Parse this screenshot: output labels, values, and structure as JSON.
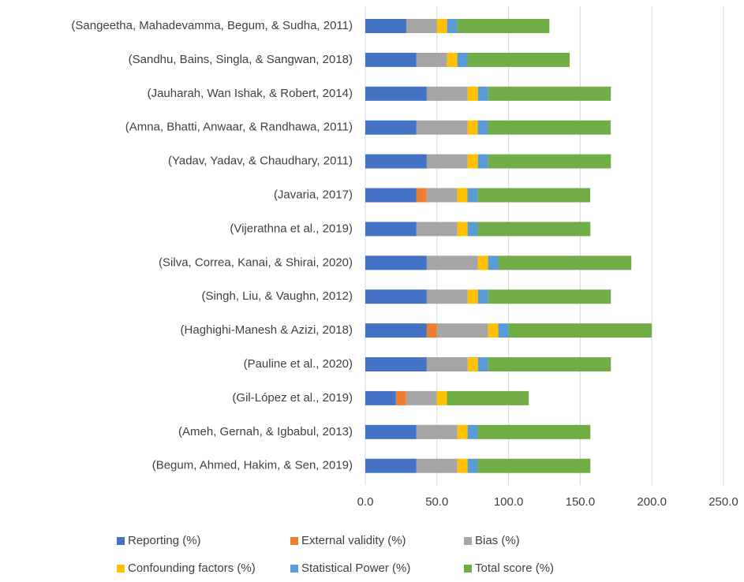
{
  "chart_data": {
    "type": "stacked-bar-horizontal",
    "categories": [
      "(Sangeetha, Mahadevamma, Begum, & Sudha, 2011)",
      "(Sandhu, Bains, Singla, & Sangwan, 2018)",
      "(Jauharah, Wan Ishak, & Robert, 2014)",
      "(Amna, Bhatti, Anwaar, & Randhawa, 2011)",
      "(Yadav, Yadav, & Chaudhary, 2011)",
      "(Javaria, 2017)",
      "(Vijerathna et al., 2019)",
      "(Silva, Correa, Kanai, & Shirai, 2020)",
      "(Singh, Liu, & Vaughn, 2012)",
      "(Haghighi-Manesh & Azizi, 2018)",
      "(Pauline et al., 2020)",
      "(Gil-López et al., 2019)",
      "(Ameh, Gernah, & Igbabul, 2013)",
      "(Begum, Ahmed, Hakim, & Sen, 2019)"
    ],
    "series": [
      {
        "name": "Reporting (%)",
        "color": "#4472c4",
        "values": [
          28.6,
          35.7,
          42.9,
          35.7,
          42.9,
          35.7,
          35.7,
          42.9,
          42.9,
          42.9,
          42.9,
          21.4,
          35.7,
          35.7
        ]
      },
      {
        "name": "External validity (%)",
        "color": "#ed7d31",
        "values": [
          0,
          0,
          0,
          0,
          0,
          7.1,
          0,
          0,
          0,
          7.1,
          0,
          7.1,
          0,
          0
        ]
      },
      {
        "name": "Bias (%)",
        "color": "#a5a5a5",
        "values": [
          21.4,
          21.4,
          28.6,
          35.7,
          28.6,
          21.4,
          28.6,
          35.7,
          28.6,
          35.7,
          28.6,
          21.4,
          28.6,
          28.6
        ]
      },
      {
        "name": "Confounding factors (%)",
        "color": "#ffc000",
        "values": [
          7.1,
          7.1,
          7.1,
          7.1,
          7.1,
          7.1,
          7.1,
          7.1,
          7.1,
          7.1,
          7.1,
          7.1,
          7.1,
          7.1
        ]
      },
      {
        "name": "Statistical Power (%)",
        "color": "#5b9bd5",
        "values": [
          7.1,
          7.1,
          7.1,
          7.1,
          7.1,
          7.1,
          7.1,
          7.1,
          7.1,
          7.1,
          7.1,
          0,
          7.1,
          7.1
        ]
      },
      {
        "name": "Total score (%)",
        "color": "#70ad47",
        "values": [
          64.3,
          71.4,
          85.7,
          85.7,
          85.7,
          78.6,
          78.6,
          92.9,
          85.7,
          100,
          85.7,
          57.1,
          78.6,
          78.6
        ]
      }
    ],
    "xlim": [
      0,
      250
    ],
    "xticks": [
      {
        "value": 0,
        "label": "0.0"
      },
      {
        "value": 50,
        "label": "50.0"
      },
      {
        "value": 100,
        "label": "100.0"
      },
      {
        "value": 150,
        "label": "150.0"
      },
      {
        "value": 200,
        "label": "200.0"
      },
      {
        "value": 250,
        "label": "250.0"
      }
    ],
    "grid": true,
    "legend": "bottom"
  }
}
